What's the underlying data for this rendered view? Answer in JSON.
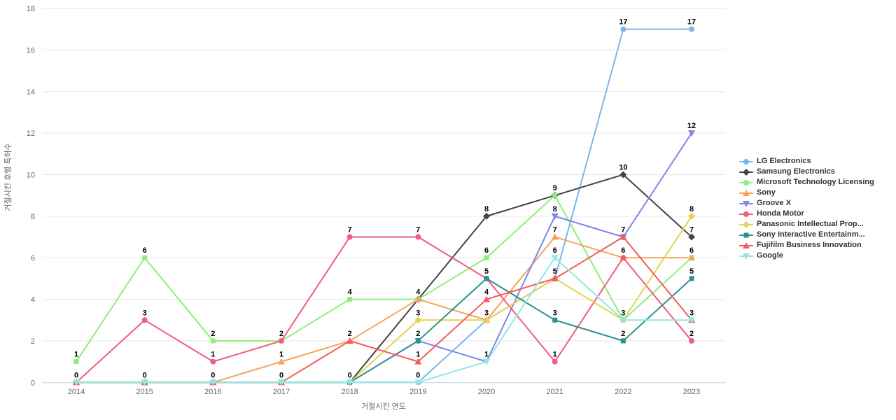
{
  "chart_data": {
    "type": "line",
    "x": [
      "2014",
      "2015",
      "2016",
      "2017",
      "2018",
      "2019",
      "2020",
      "2021",
      "2022",
      "2023"
    ],
    "xlabel": "거절시킨 연도",
    "ylabel": "거절시킨 후행 특허수",
    "ylim": [
      0,
      18
    ],
    "yticks": [
      0,
      2,
      4,
      6,
      8,
      10,
      12,
      14,
      16,
      18
    ],
    "grid": true,
    "legend_position": "right",
    "data_labels": true,
    "series": [
      {
        "name": "LG Electronics",
        "color": "#7cb5ec",
        "marker": "circle",
        "values": [
          0,
          0,
          0,
          0,
          0,
          0,
          3,
          5,
          17,
          17
        ]
      },
      {
        "name": "Samsung Electronics",
        "color": "#434348",
        "marker": "diamond",
        "values": [
          0,
          0,
          0,
          0,
          0,
          4,
          8,
          9,
          10,
          7
        ]
      },
      {
        "name": "Microsoft Technology Licensing",
        "color": "#90ed7d",
        "marker": "square",
        "values": [
          1,
          6,
          2,
          2,
          4,
          4,
          6,
          9,
          3,
          6
        ]
      },
      {
        "name": "Sony",
        "color": "#f7a35c",
        "marker": "triangle",
        "values": [
          0,
          0,
          0,
          1,
          2,
          4,
          3,
          7,
          6,
          6
        ]
      },
      {
        "name": "Groove X",
        "color": "#8085e9",
        "marker": "triangle-down",
        "values": [
          0,
          0,
          0,
          0,
          0,
          2,
          1,
          8,
          7,
          12
        ]
      },
      {
        "name": "Honda Motor",
        "color": "#f15c80",
        "marker": "circle",
        "values": [
          0,
          3,
          1,
          2,
          7,
          7,
          5,
          1,
          6,
          2
        ]
      },
      {
        "name": "Panasonic Intellectual Prop...",
        "color": "#e4d354",
        "marker": "diamond",
        "values": [
          0,
          0,
          0,
          0,
          0,
          3,
          3,
          5,
          3,
          8
        ]
      },
      {
        "name": "Sony Interactive Entertainm...",
        "color": "#2b908f",
        "marker": "square",
        "values": [
          0,
          0,
          0,
          0,
          0,
          2,
          5,
          3,
          2,
          5
        ]
      },
      {
        "name": "Fujifilm Business Innovation",
        "color": "#f45b5b",
        "marker": "triangle",
        "values": [
          0,
          0,
          0,
          0,
          2,
          1,
          4,
          5,
          7,
          3
        ]
      },
      {
        "name": "Google",
        "color": "#91e8e1",
        "marker": "triangle-down",
        "values": [
          0,
          0,
          0,
          0,
          0,
          0,
          1,
          6,
          3,
          3
        ]
      }
    ],
    "colors": {
      "grid_line": "#e6e6e6",
      "axis_line": "#ccd6eb",
      "tick_label": "#666666",
      "axis_title": "#666666",
      "data_label": "#000000",
      "legend_text": "#333333",
      "background": "#ffffff"
    }
  }
}
